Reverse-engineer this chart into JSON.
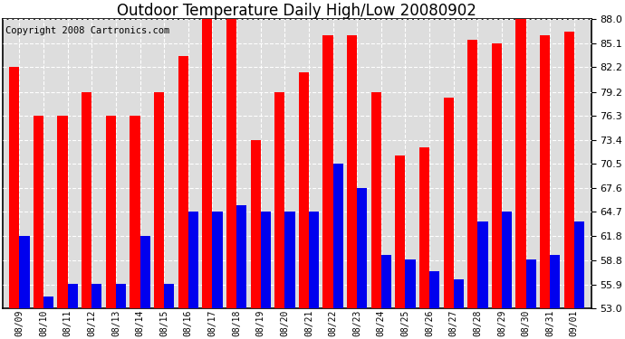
{
  "title": "Outdoor Temperature Daily High/Low 20080902",
  "copyright": "Copyright 2008 Cartronics.com",
  "dates": [
    "08/09",
    "08/10",
    "08/11",
    "08/12",
    "08/13",
    "08/14",
    "08/15",
    "08/16",
    "08/17",
    "08/18",
    "08/19",
    "08/20",
    "08/21",
    "08/22",
    "08/23",
    "08/24",
    "08/25",
    "08/26",
    "08/27",
    "08/28",
    "08/29",
    "08/30",
    "08/31",
    "09/01"
  ],
  "highs": [
    82.2,
    76.3,
    76.3,
    79.2,
    76.3,
    76.3,
    79.2,
    83.5,
    88.0,
    88.0,
    73.4,
    79.2,
    81.5,
    86.0,
    86.0,
    79.2,
    71.5,
    72.5,
    78.5,
    85.5,
    85.0,
    88.0,
    86.0,
    86.5
  ],
  "lows": [
    61.8,
    54.5,
    56.0,
    56.0,
    56.0,
    61.8,
    56.0,
    64.7,
    64.7,
    65.5,
    64.7,
    64.7,
    64.7,
    70.5,
    67.6,
    59.5,
    59.0,
    57.5,
    56.5,
    63.5,
    64.7,
    59.0,
    59.5,
    63.5
  ],
  "bar_width": 0.42,
  "high_color": "#FF0000",
  "low_color": "#0000EE",
  "bg_color": "#FFFFFF",
  "plot_bg_color": "#DDDDDD",
  "grid_color": "#FFFFFF",
  "yticks": [
    53.0,
    55.9,
    58.8,
    61.8,
    64.7,
    67.6,
    70.5,
    73.4,
    76.3,
    79.2,
    82.2,
    85.1,
    88.0
  ],
  "ylim": [
    53.0,
    88.0
  ],
  "title_fontsize": 12,
  "copyright_fontsize": 7.5,
  "figwidth": 6.9,
  "figheight": 3.75,
  "dpi": 100
}
